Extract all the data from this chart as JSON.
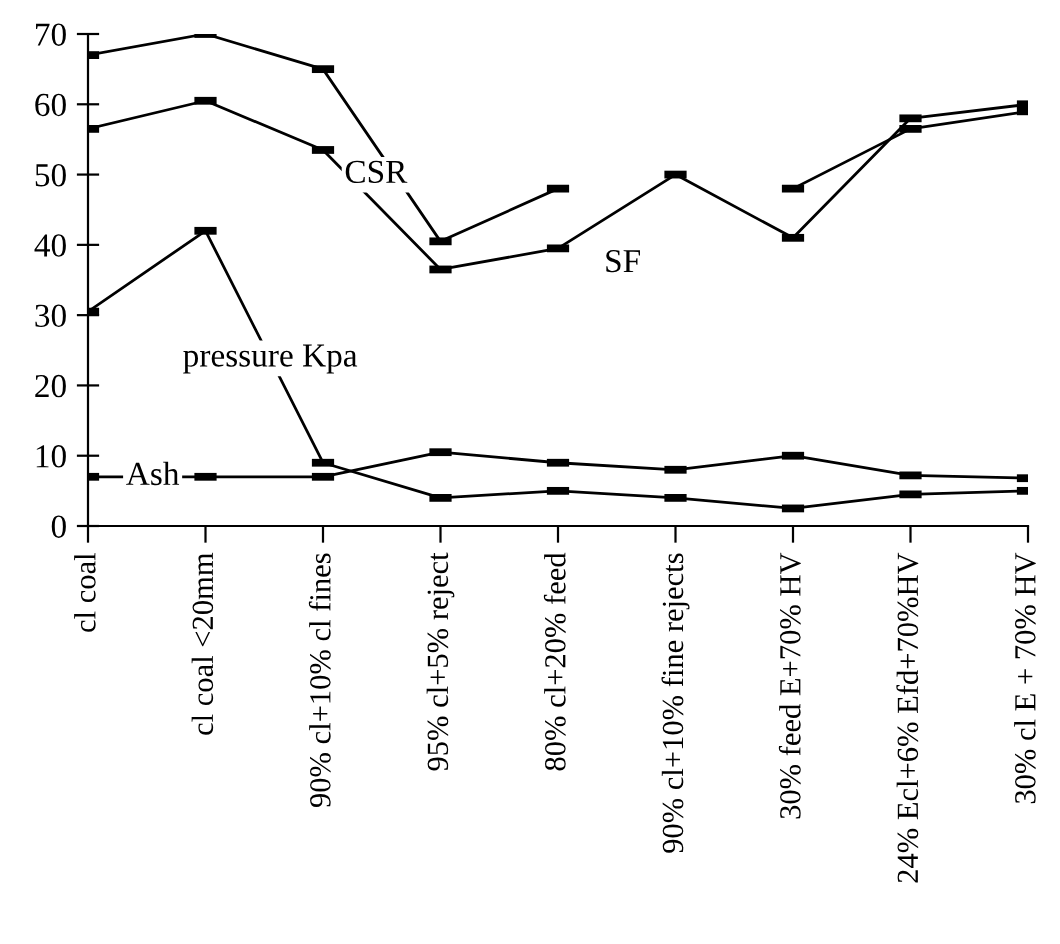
{
  "chart_data": {
    "type": "line",
    "categories": [
      "cl coal",
      "cl coal <20mm",
      "90% cl+10% cl fines",
      "95% cl+5% reject",
      "80% cl+20% feed",
      "90% cl+10% fine rejects",
      "30% feed E+70% HV",
      "24% Ecl+6% Efd+70%HV",
      "30% cl E + 70% HV"
    ],
    "series": [
      {
        "name": "CSR",
        "color": "#000000",
        "values": [
          67,
          70,
          65,
          40.5,
          48,
          null,
          48,
          56.5,
          59
        ]
      },
      {
        "name": "SF",
        "color": "#000000",
        "values": [
          56.5,
          60.5,
          53.5,
          36.5,
          39.5,
          50,
          41,
          58,
          60
        ]
      },
      {
        "name": "pressure Kpa",
        "color": "#000000",
        "values": [
          30.5,
          42,
          9,
          4,
          5,
          4,
          2.5,
          4.5,
          5
        ]
      },
      {
        "name": "Ash",
        "color": "#000000",
        "values": [
          7,
          7,
          7,
          10.5,
          9,
          8,
          10,
          7.2,
          6.8
        ]
      }
    ],
    "ylim": [
      0,
      70
    ],
    "yticks": [
      0,
      10,
      20,
      30,
      40,
      50,
      60,
      70
    ],
    "grid": false,
    "legend": false,
    "marker": "square",
    "line_style": "solid"
  }
}
